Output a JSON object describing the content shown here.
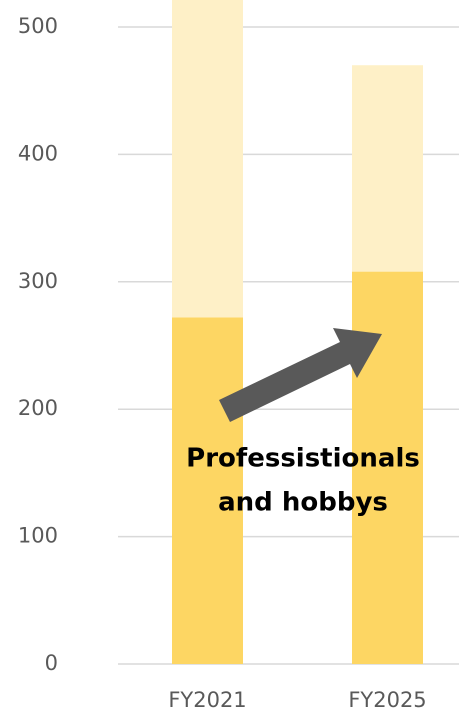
{
  "chart_data": {
    "type": "stacked_bar",
    "categories": [
      "FY2021",
      "FY2025"
    ],
    "series": [
      {
        "color": "#fdd663",
        "values": [
          272,
          308
        ]
      },
      {
        "color": "#fef0c7",
        "values": [
          290,
          162
        ]
      }
    ],
    "ylim": [
      0,
      520
    ],
    "yticks": [
      0,
      100,
      200,
      300,
      400,
      500
    ],
    "grid": true,
    "annotation": [
      "Professistionals",
      "and hobbys"
    ]
  }
}
